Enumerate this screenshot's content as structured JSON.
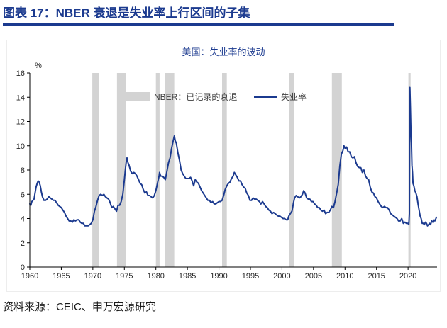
{
  "header": {
    "title": "图表 17：NBER 衰退是失业率上行区间的子集"
  },
  "footer": {
    "source": "资料来源：CEIC、申万宏源研究"
  },
  "colors": {
    "navy": "#1B3A8F",
    "line": "#1B3A8F",
    "recession_band": "#D3D3D3",
    "axis": "#000000",
    "tick_text": "#262626",
    "legend_text": "#3D3D3D"
  },
  "chart_data": {
    "type": "line",
    "title": "美国：失业率的波动",
    "unit_label": "%",
    "xlim": [
      1960,
      2024.6
    ],
    "ylim": [
      0,
      16
    ],
    "x_ticks": [
      1960,
      1965,
      1970,
      1975,
      1980,
      1985,
      1990,
      1995,
      2000,
      2005,
      2010,
      2015,
      2020
    ],
    "y_ticks": [
      0,
      2,
      4,
      6,
      8,
      10,
      12,
      14,
      16
    ],
    "grid": false,
    "legend_position": "top-inside",
    "recession_bands": {
      "label": "NBER：已记录的衰退",
      "color": "#D3D3D3",
      "intervals": [
        [
          1969.92,
          1970.92
        ],
        [
          1973.83,
          1975.25
        ],
        [
          1980.0,
          1980.58
        ],
        [
          1981.5,
          1982.92
        ],
        [
          1990.5,
          1991.25
        ],
        [
          2001.17,
          2001.92
        ],
        [
          2007.92,
          2009.5
        ],
        [
          2020.05,
          2020.4
        ]
      ]
    },
    "series": [
      {
        "name": "失业率",
        "color": "#1B3A8F",
        "points": [
          [
            1960.0,
            5.2
          ],
          [
            1960.17,
            5.1
          ],
          [
            1960.33,
            5.4
          ],
          [
            1960.5,
            5.5
          ],
          [
            1960.67,
            5.6
          ],
          [
            1960.83,
            6.1
          ],
          [
            1961.0,
            6.6
          ],
          [
            1961.17,
            6.9
          ],
          [
            1961.33,
            7.1
          ],
          [
            1961.5,
            7.0
          ],
          [
            1961.67,
            6.7
          ],
          [
            1961.83,
            6.2
          ],
          [
            1962.0,
            5.8
          ],
          [
            1962.25,
            5.5
          ],
          [
            1962.5,
            5.5
          ],
          [
            1962.75,
            5.6
          ],
          [
            1963.0,
            5.8
          ],
          [
            1963.25,
            5.7
          ],
          [
            1963.5,
            5.6
          ],
          [
            1963.75,
            5.5
          ],
          [
            1964.0,
            5.5
          ],
          [
            1964.25,
            5.3
          ],
          [
            1964.5,
            5.1
          ],
          [
            1964.75,
            5.0
          ],
          [
            1965.0,
            4.9
          ],
          [
            1965.25,
            4.7
          ],
          [
            1965.5,
            4.5
          ],
          [
            1965.75,
            4.2
          ],
          [
            1966.0,
            4.0
          ],
          [
            1966.25,
            3.8
          ],
          [
            1966.5,
            3.8
          ],
          [
            1966.75,
            3.7
          ],
          [
            1967.0,
            3.9
          ],
          [
            1967.25,
            3.8
          ],
          [
            1967.5,
            3.9
          ],
          [
            1967.75,
            3.9
          ],
          [
            1968.0,
            3.7
          ],
          [
            1968.25,
            3.6
          ],
          [
            1968.5,
            3.6
          ],
          [
            1968.75,
            3.4
          ],
          [
            1969.0,
            3.4
          ],
          [
            1969.25,
            3.4
          ],
          [
            1969.5,
            3.5
          ],
          [
            1969.75,
            3.6
          ],
          [
            1970.0,
            3.9
          ],
          [
            1970.25,
            4.6
          ],
          [
            1970.5,
            5.0
          ],
          [
            1970.75,
            5.5
          ],
          [
            1971.0,
            5.9
          ],
          [
            1971.25,
            6.0
          ],
          [
            1971.5,
            5.9
          ],
          [
            1971.75,
            6.0
          ],
          [
            1972.0,
            5.8
          ],
          [
            1972.25,
            5.7
          ],
          [
            1972.5,
            5.6
          ],
          [
            1972.75,
            5.3
          ],
          [
            1973.0,
            4.9
          ],
          [
            1973.25,
            5.0
          ],
          [
            1973.5,
            4.8
          ],
          [
            1973.75,
            4.6
          ],
          [
            1974.0,
            5.1
          ],
          [
            1974.25,
            5.1
          ],
          [
            1974.5,
            5.4
          ],
          [
            1974.75,
            6.0
          ],
          [
            1975.0,
            7.2
          ],
          [
            1975.17,
            8.1
          ],
          [
            1975.33,
            8.8
          ],
          [
            1975.42,
            9.0
          ],
          [
            1975.58,
            8.6
          ],
          [
            1975.75,
            8.4
          ],
          [
            1976.0,
            7.9
          ],
          [
            1976.25,
            7.7
          ],
          [
            1976.5,
            7.8
          ],
          [
            1976.75,
            7.7
          ],
          [
            1977.0,
            7.5
          ],
          [
            1977.25,
            7.2
          ],
          [
            1977.5,
            6.9
          ],
          [
            1977.75,
            6.8
          ],
          [
            1978.0,
            6.4
          ],
          [
            1978.25,
            6.1
          ],
          [
            1978.5,
            6.2
          ],
          [
            1978.75,
            5.9
          ],
          [
            1979.0,
            5.9
          ],
          [
            1979.25,
            5.8
          ],
          [
            1979.5,
            5.7
          ],
          [
            1979.75,
            5.9
          ],
          [
            1980.0,
            6.3
          ],
          [
            1980.25,
            6.9
          ],
          [
            1980.5,
            7.5
          ],
          [
            1980.58,
            7.8
          ],
          [
            1980.75,
            7.5
          ],
          [
            1981.0,
            7.5
          ],
          [
            1981.25,
            7.4
          ],
          [
            1981.5,
            7.2
          ],
          [
            1981.75,
            7.9
          ],
          [
            1982.0,
            8.6
          ],
          [
            1982.25,
            9.0
          ],
          [
            1982.5,
            9.8
          ],
          [
            1982.75,
            10.4
          ],
          [
            1982.92,
            10.8
          ],
          [
            1983.08,
            10.4
          ],
          [
            1983.25,
            10.2
          ],
          [
            1983.5,
            9.4
          ],
          [
            1983.75,
            8.8
          ],
          [
            1984.0,
            8.0
          ],
          [
            1984.25,
            7.7
          ],
          [
            1984.5,
            7.5
          ],
          [
            1984.75,
            7.3
          ],
          [
            1985.0,
            7.3
          ],
          [
            1985.25,
            7.3
          ],
          [
            1985.5,
            7.4
          ],
          [
            1985.75,
            7.1
          ],
          [
            1986.0,
            6.7
          ],
          [
            1986.25,
            7.2
          ],
          [
            1986.5,
            7.0
          ],
          [
            1986.75,
            6.9
          ],
          [
            1987.0,
            6.6
          ],
          [
            1987.25,
            6.3
          ],
          [
            1987.5,
            6.1
          ],
          [
            1987.75,
            5.9
          ],
          [
            1988.0,
            5.7
          ],
          [
            1988.25,
            5.5
          ],
          [
            1988.5,
            5.5
          ],
          [
            1988.75,
            5.3
          ],
          [
            1989.0,
            5.4
          ],
          [
            1989.25,
            5.2
          ],
          [
            1989.5,
            5.2
          ],
          [
            1989.75,
            5.3
          ],
          [
            1990.0,
            5.4
          ],
          [
            1990.25,
            5.4
          ],
          [
            1990.5,
            5.5
          ],
          [
            1990.75,
            5.9
          ],
          [
            1991.0,
            6.4
          ],
          [
            1991.25,
            6.7
          ],
          [
            1991.5,
            6.9
          ],
          [
            1991.75,
            7.0
          ],
          [
            1992.0,
            7.3
          ],
          [
            1992.25,
            7.5
          ],
          [
            1992.45,
            7.8
          ],
          [
            1992.67,
            7.6
          ],
          [
            1992.92,
            7.4
          ],
          [
            1993.17,
            7.1
          ],
          [
            1993.42,
            7.1
          ],
          [
            1993.67,
            6.8
          ],
          [
            1993.92,
            6.6
          ],
          [
            1994.17,
            6.5
          ],
          [
            1994.42,
            6.1
          ],
          [
            1994.67,
            5.9
          ],
          [
            1994.92,
            5.5
          ],
          [
            1995.17,
            5.5
          ],
          [
            1995.42,
            5.7
          ],
          [
            1995.67,
            5.6
          ],
          [
            1995.92,
            5.6
          ],
          [
            1996.17,
            5.5
          ],
          [
            1996.42,
            5.4
          ],
          [
            1996.67,
            5.2
          ],
          [
            1996.92,
            5.4
          ],
          [
            1997.17,
            5.2
          ],
          [
            1997.42,
            5.0
          ],
          [
            1997.67,
            4.9
          ],
          [
            1997.92,
            4.7
          ],
          [
            1998.17,
            4.6
          ],
          [
            1998.42,
            4.4
          ],
          [
            1998.67,
            4.5
          ],
          [
            1998.92,
            4.4
          ],
          [
            1999.17,
            4.3
          ],
          [
            1999.42,
            4.2
          ],
          [
            1999.67,
            4.2
          ],
          [
            1999.92,
            4.1
          ],
          [
            2000.17,
            4.0
          ],
          [
            2000.42,
            4.0
          ],
          [
            2000.67,
            3.9
          ],
          [
            2000.92,
            3.9
          ],
          [
            2001.08,
            4.2
          ],
          [
            2001.33,
            4.4
          ],
          [
            2001.58,
            4.6
          ],
          [
            2001.83,
            5.3
          ],
          [
            2002.0,
            5.7
          ],
          [
            2002.25,
            5.9
          ],
          [
            2002.5,
            5.8
          ],
          [
            2002.75,
            5.7
          ],
          [
            2003.0,
            5.8
          ],
          [
            2003.25,
            6.0
          ],
          [
            2003.45,
            6.3
          ],
          [
            2003.67,
            6.1
          ],
          [
            2003.92,
            5.7
          ],
          [
            2004.17,
            5.6
          ],
          [
            2004.42,
            5.6
          ],
          [
            2004.67,
            5.4
          ],
          [
            2004.92,
            5.4
          ],
          [
            2005.17,
            5.2
          ],
          [
            2005.42,
            5.1
          ],
          [
            2005.67,
            4.9
          ],
          [
            2005.92,
            4.9
          ],
          [
            2006.17,
            4.7
          ],
          [
            2006.42,
            4.6
          ],
          [
            2006.67,
            4.7
          ],
          [
            2006.92,
            4.4
          ],
          [
            2007.17,
            4.5
          ],
          [
            2007.42,
            4.5
          ],
          [
            2007.67,
            4.7
          ],
          [
            2007.92,
            5.0
          ],
          [
            2008.17,
            4.9
          ],
          [
            2008.42,
            5.4
          ],
          [
            2008.67,
            6.1
          ],
          [
            2008.92,
            6.8
          ],
          [
            2009.17,
            8.3
          ],
          [
            2009.42,
            9.3
          ],
          [
            2009.67,
            9.6
          ],
          [
            2009.83,
            10.0
          ],
          [
            2010.0,
            9.8
          ],
          [
            2010.25,
            9.9
          ],
          [
            2010.5,
            9.5
          ],
          [
            2010.75,
            9.5
          ],
          [
            2011.0,
            9.1
          ],
          [
            2011.25,
            9.0
          ],
          [
            2011.5,
            9.1
          ],
          [
            2011.75,
            8.6
          ],
          [
            2012.0,
            8.3
          ],
          [
            2012.25,
            8.2
          ],
          [
            2012.5,
            8.2
          ],
          [
            2012.75,
            7.8
          ],
          [
            2013.0,
            8.0
          ],
          [
            2013.25,
            7.5
          ],
          [
            2013.5,
            7.3
          ],
          [
            2013.75,
            7.2
          ],
          [
            2014.0,
            6.6
          ],
          [
            2014.25,
            6.2
          ],
          [
            2014.5,
            6.1
          ],
          [
            2014.75,
            5.8
          ],
          [
            2015.0,
            5.7
          ],
          [
            2015.25,
            5.4
          ],
          [
            2015.5,
            5.2
          ],
          [
            2015.75,
            5.0
          ],
          [
            2016.0,
            4.9
          ],
          [
            2016.25,
            5.0
          ],
          [
            2016.5,
            4.9
          ],
          [
            2016.75,
            4.9
          ],
          [
            2017.0,
            4.7
          ],
          [
            2017.25,
            4.4
          ],
          [
            2017.5,
            4.3
          ],
          [
            2017.75,
            4.2
          ],
          [
            2018.0,
            4.1
          ],
          [
            2018.25,
            4.0
          ],
          [
            2018.5,
            3.8
          ],
          [
            2018.75,
            3.8
          ],
          [
            2019.0,
            4.0
          ],
          [
            2019.25,
            3.6
          ],
          [
            2019.5,
            3.7
          ],
          [
            2019.75,
            3.6
          ],
          [
            2020.0,
            3.6
          ],
          [
            2020.12,
            3.5
          ],
          [
            2020.21,
            4.4
          ],
          [
            2020.29,
            14.8
          ],
          [
            2020.37,
            13.2
          ],
          [
            2020.46,
            11.0
          ],
          [
            2020.54,
            10.2
          ],
          [
            2020.62,
            8.4
          ],
          [
            2020.71,
            7.8
          ],
          [
            2020.79,
            6.9
          ],
          [
            2020.92,
            6.7
          ],
          [
            2021.08,
            6.3
          ],
          [
            2021.25,
            6.1
          ],
          [
            2021.42,
            5.8
          ],
          [
            2021.58,
            5.2
          ],
          [
            2021.75,
            4.7
          ],
          [
            2021.92,
            4.2
          ],
          [
            2022.08,
            4.0
          ],
          [
            2022.25,
            3.6
          ],
          [
            2022.42,
            3.6
          ],
          [
            2022.58,
            3.5
          ],
          [
            2022.75,
            3.7
          ],
          [
            2022.92,
            3.6
          ],
          [
            2023.08,
            3.4
          ],
          [
            2023.25,
            3.5
          ],
          [
            2023.42,
            3.6
          ],
          [
            2023.58,
            3.5
          ],
          [
            2023.75,
            3.8
          ],
          [
            2023.92,
            3.7
          ],
          [
            2024.08,
            3.9
          ],
          [
            2024.25,
            3.8
          ],
          [
            2024.42,
            4.0
          ],
          [
            2024.5,
            4.1
          ]
        ]
      }
    ]
  }
}
